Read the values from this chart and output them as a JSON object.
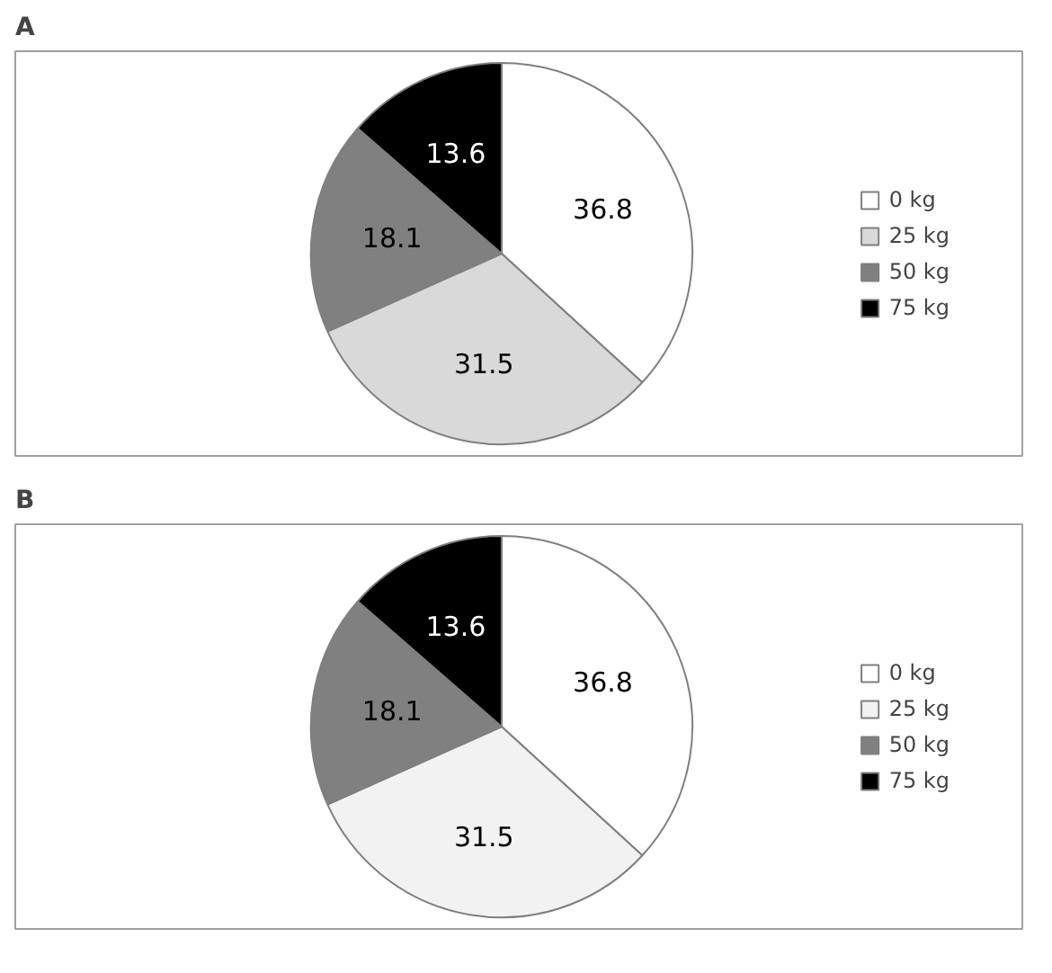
{
  "chart_data": [
    {
      "type": "pie",
      "title": "A",
      "categories": [
        "0 kg",
        "25 kg",
        "50 kg",
        "75 kg"
      ],
      "values": [
        36.8,
        31.5,
        18.1,
        13.6
      ],
      "colors": [
        "#ffffff",
        "#d9d9d9",
        "#808080",
        "#000000"
      ],
      "data_labels": true,
      "legend": "right"
    },
    {
      "type": "pie",
      "title": "B",
      "categories": [
        "0 kg",
        "25 kg",
        "50 kg",
        "75 kg"
      ],
      "values": [
        36.8,
        31.5,
        18.1,
        13.6
      ],
      "colors": [
        "#ffffff",
        "#f2f2f2",
        "#808080",
        "#000000"
      ],
      "data_labels": true,
      "legend": "right"
    }
  ]
}
